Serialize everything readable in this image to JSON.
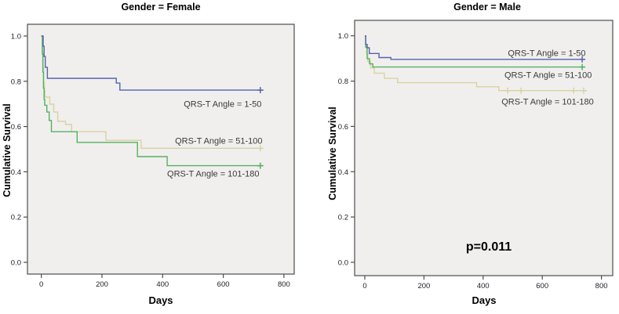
{
  "colors": {
    "plot_background": "#f0efee",
    "frame": "#4d4d4d",
    "blue": "#5563ae",
    "tan": "#d9d2a0",
    "green": "#54b25e",
    "label_text": "#3a3a3a"
  },
  "chart_data": [
    {
      "type": "line",
      "variant": "kaplan-meier-step",
      "title": "Gender = Female",
      "xlabel": "Days",
      "ylabel": "Cumulative Survival",
      "xlim": [
        -40,
        875
      ],
      "ylim": [
        -0.05,
        1.05
      ],
      "xticks": [
        0,
        200,
        400,
        600,
        800
      ],
      "yticks": [
        1.0,
        0.8,
        0.6,
        0.4,
        0.2,
        0.0
      ],
      "grid": false,
      "legend_position": "inline-labels",
      "series": [
        {
          "name": "QRS-T Angle = 1-50",
          "color": "#5563ae",
          "draw_order": 3,
          "points": [
            [
              0,
              1.0
            ],
            [
              6,
              0.955
            ],
            [
              9,
              0.91
            ],
            [
              13,
              0.862
            ],
            [
              20,
              0.813
            ],
            [
              247,
              0.792
            ],
            [
              259,
              0.761
            ],
            [
              728,
              0.761
            ]
          ],
          "censors": [
            [
              722,
              0.761
            ]
          ],
          "label": {
            "day": 598,
            "value": 0.699
          }
        },
        {
          "name": "QRS-T Angle = 51-100",
          "color": "#d9d2a0",
          "draw_order": 1,
          "points": [
            [
              0,
              1.0
            ],
            [
              4,
              0.93
            ],
            [
              6,
              0.86
            ],
            [
              8,
              0.795
            ],
            [
              10,
              0.758
            ],
            [
              12,
              0.73
            ],
            [
              28,
              0.699
            ],
            [
              41,
              0.664
            ],
            [
              54,
              0.623
            ],
            [
              80,
              0.609
            ],
            [
              100,
              0.577
            ],
            [
              213,
              0.539
            ],
            [
              329,
              0.504
            ],
            [
              728,
              0.504
            ]
          ],
          "censors": [
            [
              722,
              0.504
            ]
          ],
          "label": {
            "day": 585,
            "value": 0.536
          }
        },
        {
          "name": "QRS-T Angle = 101-180",
          "color": "#54b25e",
          "draw_order": 2,
          "points": [
            [
              0,
              1.0
            ],
            [
              3,
              0.92
            ],
            [
              5,
              0.84
            ],
            [
              7,
              0.77
            ],
            [
              9,
              0.72
            ],
            [
              11,
              0.694
            ],
            [
              18,
              0.664
            ],
            [
              26,
              0.627
            ],
            [
              33,
              0.577
            ],
            [
              118,
              0.53
            ],
            [
              317,
              0.467
            ],
            [
              415,
              0.427
            ],
            [
              728,
              0.427
            ]
          ],
          "censors": [
            [
              722,
              0.427
            ]
          ],
          "label": {
            "day": 567,
            "value": 0.391
          }
        }
      ],
      "annotation": null
    },
    {
      "type": "line",
      "variant": "kaplan-meier-step",
      "title": "Gender = Male",
      "xlabel": "Days",
      "ylabel": "Cumulative Survival",
      "xlim": [
        -40,
        875
      ],
      "ylim": [
        -0.06,
        1.06
      ],
      "xticks": [
        0,
        200,
        400,
        600,
        800
      ],
      "yticks": [
        1.0,
        0.8,
        0.6,
        0.4,
        0.2,
        0.0
      ],
      "grid": false,
      "legend_position": "inline-labels",
      "series": [
        {
          "name": "QRS-T Angle = 1-50",
          "color": "#5563ae",
          "draw_order": 3,
          "points": [
            [
              0,
              1.0
            ],
            [
              3,
              0.962
            ],
            [
              8,
              0.947
            ],
            [
              15,
              0.922
            ],
            [
              48,
              0.904
            ],
            [
              88,
              0.896
            ],
            [
              742,
              0.896
            ]
          ],
          "censors": [
            [
              735,
              0.896
            ]
          ],
          "label": {
            "day": 615,
            "value": 0.923
          }
        },
        {
          "name": "QRS-T Angle = 51-100",
          "color": "#54b25e",
          "draw_order": 2,
          "points": [
            [
              0,
              1.0
            ],
            [
              3,
              0.95
            ],
            [
              8,
              0.899
            ],
            [
              16,
              0.876
            ],
            [
              27,
              0.862
            ],
            [
              742,
              0.862
            ]
          ],
          "censors": [
            [
              735,
              0.862
            ]
          ],
          "label": {
            "day": 620,
            "value": 0.826
          }
        },
        {
          "name": "QRS-T Angle = 101-180",
          "color": "#d9d2a0",
          "draw_order": 1,
          "points": [
            [
              0,
              1.0
            ],
            [
              3,
              0.955
            ],
            [
              6,
              0.92
            ],
            [
              10,
              0.887
            ],
            [
              20,
              0.858
            ],
            [
              32,
              0.835
            ],
            [
              66,
              0.812
            ],
            [
              111,
              0.793
            ],
            [
              378,
              0.775
            ],
            [
              453,
              0.758
            ],
            [
              745,
              0.758
            ]
          ],
          "censors": [
            [
              483,
              0.758
            ],
            [
              528,
              0.758
            ],
            [
              706,
              0.758
            ],
            [
              740,
              0.758
            ]
          ],
          "label": {
            "day": 618,
            "value": 0.709
          }
        }
      ],
      "annotation": {
        "text": "p=0.011",
        "day": 419,
        "value": 0.069
      }
    }
  ]
}
